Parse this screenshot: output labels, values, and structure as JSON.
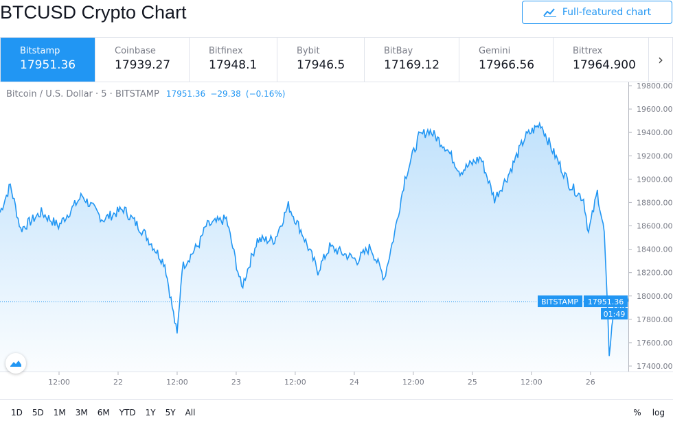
{
  "header": {
    "title": "BTCUSD Crypto Chart",
    "full_chart_label": "Full-featured chart"
  },
  "exchanges": [
    {
      "name": "Bitstamp",
      "price": "17951.36",
      "active": true
    },
    {
      "name": "Coinbase",
      "price": "17939.27"
    },
    {
      "name": "Bitfinex",
      "price": "17948.1"
    },
    {
      "name": "Bybit",
      "price": "17946.5"
    },
    {
      "name": "BitBay",
      "price": "17169.12"
    },
    {
      "name": "Gemini",
      "price": "17966.56"
    },
    {
      "name": "Bittrex",
      "price": "17964.900"
    }
  ],
  "legend": {
    "symbol": "Bitcoin / U.S. Dollar · 5 · BITSTAMP",
    "last": "17951.36",
    "change": "−29.38",
    "change_pct": "(−0.16%)"
  },
  "price_label": {
    "exchange": "BITSTAMP",
    "price": "17951.36",
    "countdown": "01:49"
  },
  "colors": {
    "accent": "#2196f3",
    "line": "#2196f3"
  },
  "range_buttons": [
    "1D",
    "5D",
    "1M",
    "3M",
    "6M",
    "YTD",
    "1Y",
    "5Y",
    "All"
  ],
  "scale_buttons": {
    "percent": "%",
    "log": "log"
  },
  "chart_data": {
    "type": "area",
    "x_unit": "hours since 21 00:00",
    "xlim": [
      0,
      127.7
    ],
    "ylim": [
      17320,
      19840
    ],
    "y_ticks": [
      17400,
      17600,
      17800,
      18000,
      18200,
      18400,
      18600,
      18800,
      19000,
      19200,
      19400,
      19600,
      19800
    ],
    "x_ticks": [
      {
        "h": 12,
        "label": "12:00"
      },
      {
        "h": 24,
        "label": "22"
      },
      {
        "h": 36,
        "label": "12:00"
      },
      {
        "h": 48,
        "label": "23"
      },
      {
        "h": 60,
        "label": "12:00"
      },
      {
        "h": 72,
        "label": "24"
      },
      {
        "h": 84,
        "label": "12:00"
      },
      {
        "h": 96,
        "label": "25"
      },
      {
        "h": 108,
        "label": "12:00"
      },
      {
        "h": 120,
        "label": "26"
      }
    ],
    "last_price": 17951.36,
    "points": [
      [
        0,
        18715
      ],
      [
        2.1,
        18950
      ],
      [
        4.2,
        18570
      ],
      [
        8.4,
        18715
      ],
      [
        11.9,
        18600
      ],
      [
        16.7,
        18860
      ],
      [
        20.9,
        18655
      ],
      [
        25.1,
        18745
      ],
      [
        29.3,
        18540
      ],
      [
        33.5,
        18275
      ],
      [
        36,
        17660
      ],
      [
        37,
        18245
      ],
      [
        40.5,
        18450
      ],
      [
        41.9,
        18600
      ],
      [
        46,
        18660
      ],
      [
        49.1,
        18070
      ],
      [
        52.3,
        18480
      ],
      [
        55.8,
        18480
      ],
      [
        58.6,
        18775
      ],
      [
        61.4,
        18540
      ],
      [
        64.6,
        18215
      ],
      [
        67,
        18420
      ],
      [
        72.6,
        18305
      ],
      [
        75.3,
        18420
      ],
      [
        78.1,
        18155
      ],
      [
        80.2,
        18540
      ],
      [
        82.3,
        19010
      ],
      [
        85.1,
        19360
      ],
      [
        87.2,
        19420
      ],
      [
        90.7,
        19270
      ],
      [
        93.5,
        19065
      ],
      [
        97.7,
        19185
      ],
      [
        100.5,
        18830
      ],
      [
        103.3,
        19035
      ],
      [
        106.7,
        19360
      ],
      [
        109.9,
        19475
      ],
      [
        112.3,
        19245
      ],
      [
        115.8,
        18950
      ],
      [
        118.6,
        18830
      ],
      [
        119.6,
        18540
      ],
      [
        121.4,
        18890
      ],
      [
        122.8,
        18540
      ],
      [
        123.8,
        17510
      ],
      [
        124.9,
        17950
      ],
      [
        126.3,
        17890
      ],
      [
        127.7,
        17951
      ]
    ]
  }
}
